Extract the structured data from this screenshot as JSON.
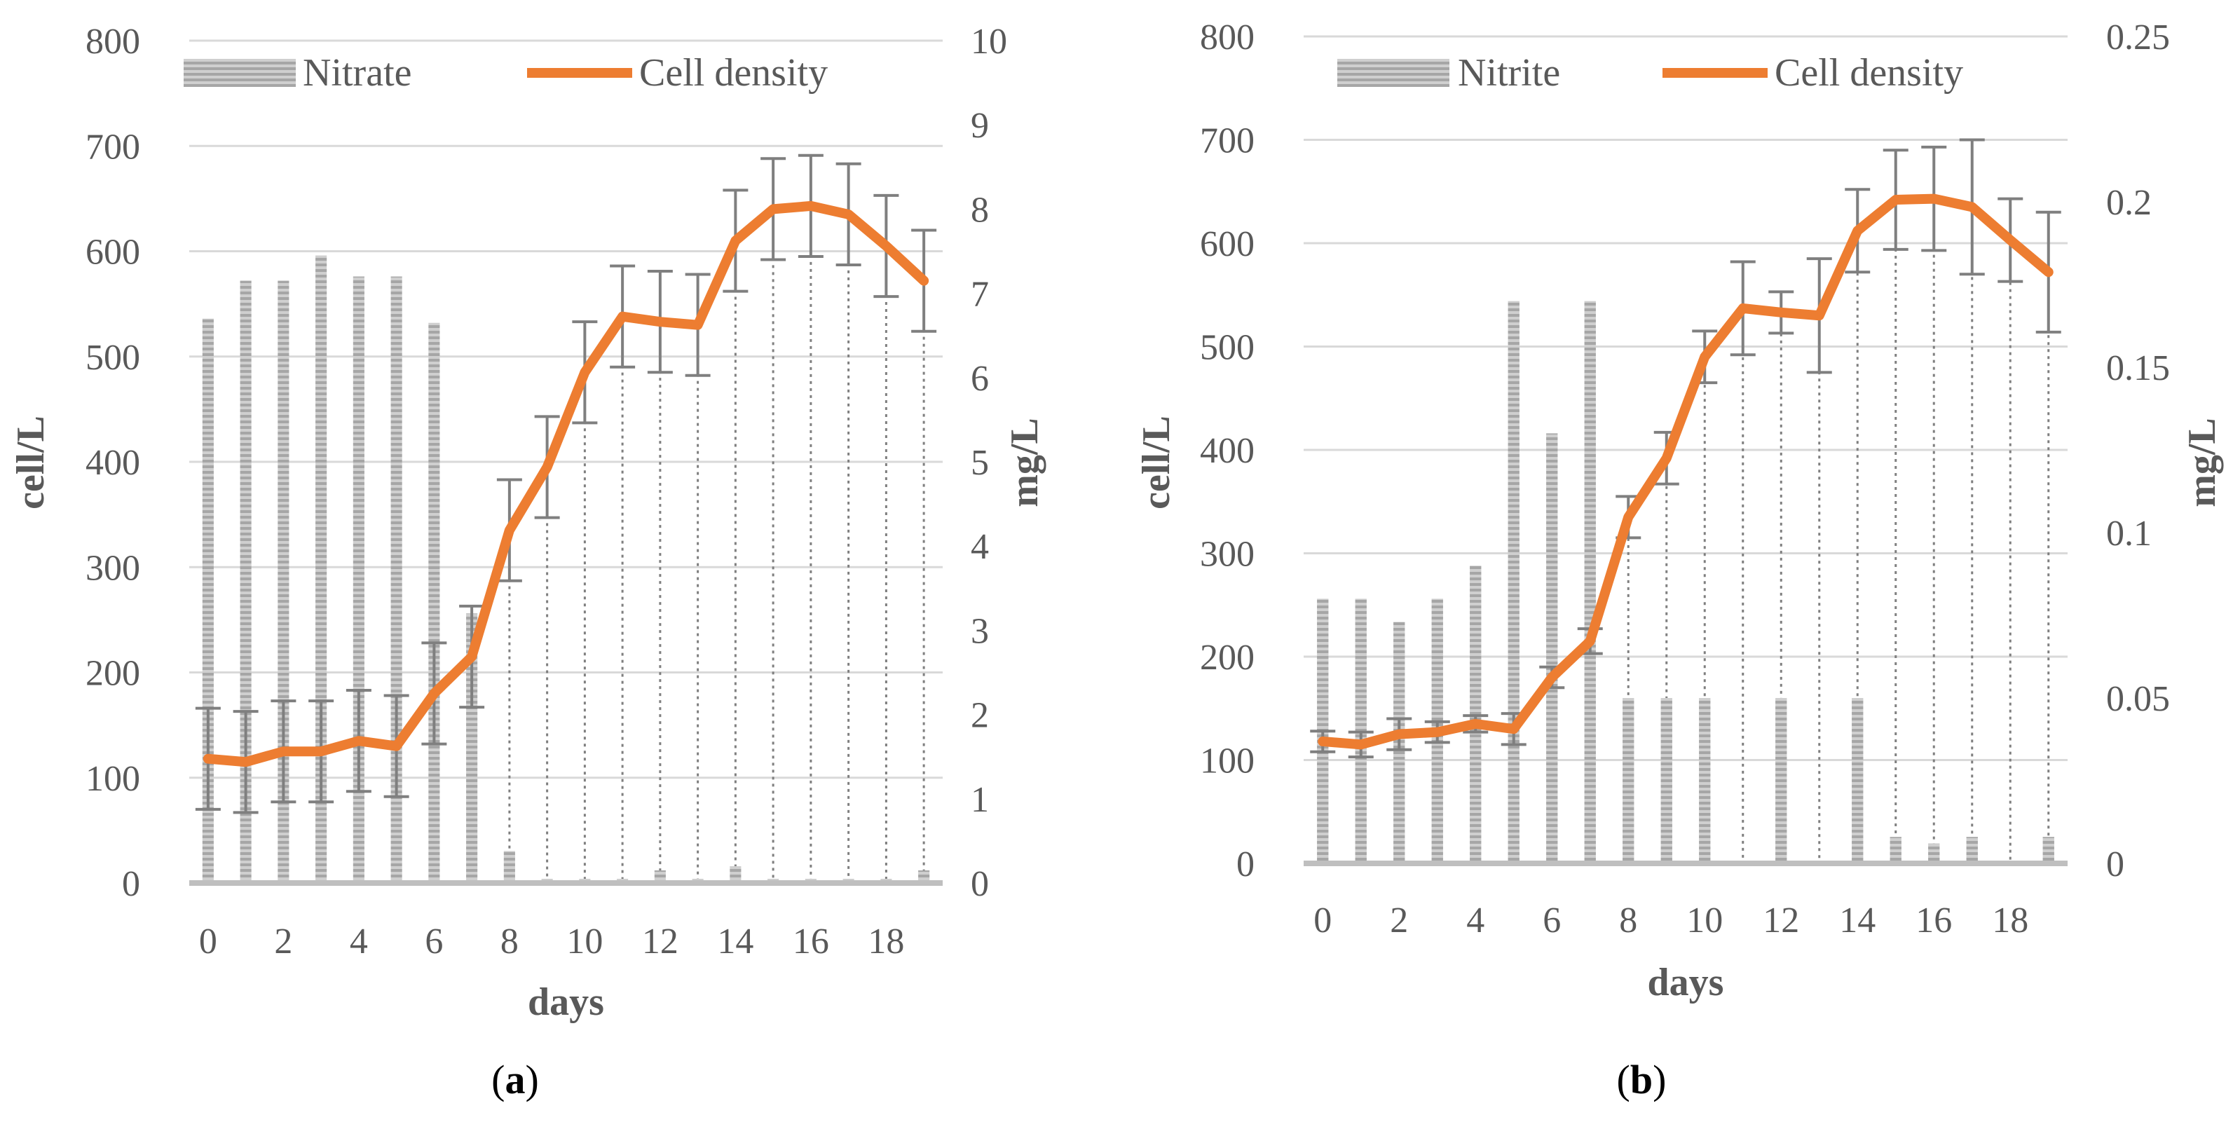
{
  "colors": {
    "line": "#ED7D31",
    "bar": "#A6A6A6",
    "error_bar": "#7F7F7F",
    "grid": "#D9D9D9",
    "text": "#595959"
  },
  "chart_data": [
    {
      "type": "bar+line",
      "panel_label": {
        "open": "(",
        "letter": "a",
        "close": ")"
      },
      "x": [
        0,
        1,
        2,
        3,
        4,
        5,
        6,
        7,
        8,
        9,
        10,
        11,
        12,
        13,
        14,
        15,
        16,
        17,
        18,
        19
      ],
      "x_ticks": [
        0,
        2,
        4,
        6,
        8,
        10,
        12,
        14,
        16,
        18
      ],
      "xlabel": "days",
      "ylabel_left": "cell/L",
      "ylabel_right": "mg/L",
      "ylim_left": [
        0,
        800
      ],
      "ylim_right": [
        0,
        10
      ],
      "yticks_left": [
        0,
        100,
        200,
        300,
        400,
        500,
        600,
        700,
        800
      ],
      "yticks_right": [
        0,
        1,
        2,
        3,
        4,
        5,
        6,
        7,
        8,
        9,
        10
      ],
      "legend_position": "top",
      "series": [
        {
          "name": "Nitrate",
          "type": "bar",
          "axis": "right",
          "values": [
            6.7,
            7.15,
            7.15,
            7.45,
            7.2,
            7.2,
            6.65,
            3.2,
            0.38,
            0.05,
            0.05,
            0.05,
            0.15,
            0.05,
            0.2,
            0.05,
            0.05,
            0.05,
            0.05,
            0.15
          ]
        },
        {
          "name": "Cell density",
          "type": "line",
          "axis": "left",
          "values": [
            118,
            115,
            125,
            125,
            135,
            130,
            180,
            215,
            335,
            395,
            485,
            538,
            533,
            530,
            610,
            640,
            643,
            635,
            605,
            572
          ],
          "errors": [
            48,
            48,
            48,
            48,
            48,
            48,
            48,
            48,
            48,
            48,
            48,
            48,
            48,
            48,
            48,
            48,
            48,
            48,
            48,
            48
          ]
        }
      ]
    },
    {
      "type": "bar+line",
      "panel_label": {
        "open": "(",
        "letter": "b",
        "close": ")"
      },
      "x": [
        0,
        1,
        2,
        3,
        4,
        5,
        6,
        7,
        8,
        9,
        10,
        11,
        12,
        13,
        14,
        15,
        16,
        17,
        18,
        19
      ],
      "x_ticks": [
        0,
        2,
        4,
        6,
        8,
        10,
        12,
        14,
        16,
        18
      ],
      "xlabel": "days",
      "ylabel_left": "cell/L",
      "ylabel_right": "mg/L",
      "ylim_left": [
        0,
        800
      ],
      "ylim_right": [
        0,
        0.25
      ],
      "yticks_left": [
        0,
        100,
        200,
        300,
        400,
        500,
        600,
        700,
        800
      ],
      "yticks_right": [
        0,
        0.05,
        0.1,
        0.15,
        0.2,
        0.25
      ],
      "legend_position": "top",
      "series": [
        {
          "name": "Nitrite",
          "type": "bar",
          "axis": "right",
          "values": [
            0.08,
            0.08,
            0.073,
            0.08,
            0.09,
            0.17,
            0.13,
            0.17,
            0.05,
            0.05,
            0.05,
            0.0,
            0.05,
            0.0,
            0.05,
            0.008,
            0.006,
            0.008,
            0.0,
            0.008
          ]
        },
        {
          "name": "Cell density",
          "type": "line",
          "axis": "left",
          "values": [
            118,
            115,
            125,
            127,
            135,
            130,
            180,
            215,
            335,
            392,
            490,
            537,
            533,
            530,
            612,
            642,
            643,
            635,
            603,
            572
          ],
          "errors": [
            10,
            12,
            15,
            10,
            8,
            15,
            10,
            12,
            20,
            25,
            25,
            45,
            20,
            55,
            40,
            48,
            50,
            65,
            40,
            58
          ]
        }
      ]
    }
  ]
}
